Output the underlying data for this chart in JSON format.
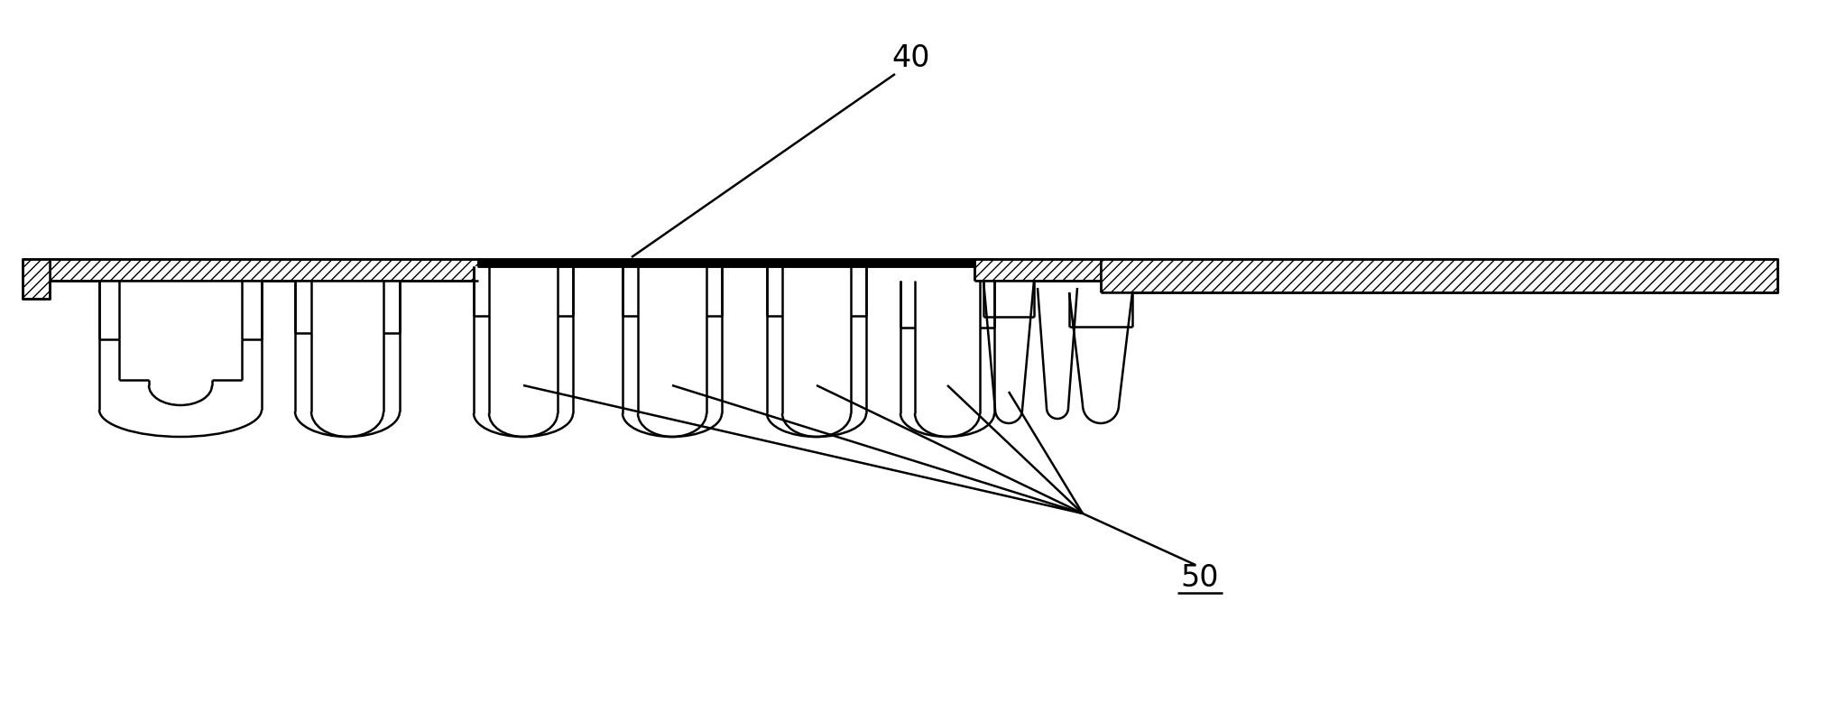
{
  "bg_color": "#ffffff",
  "line_color": "#000000",
  "label_40": "40",
  "label_50": "50",
  "figsize": [
    20.46,
    7.79
  ],
  "dpi": 100,
  "lw": 1.8
}
